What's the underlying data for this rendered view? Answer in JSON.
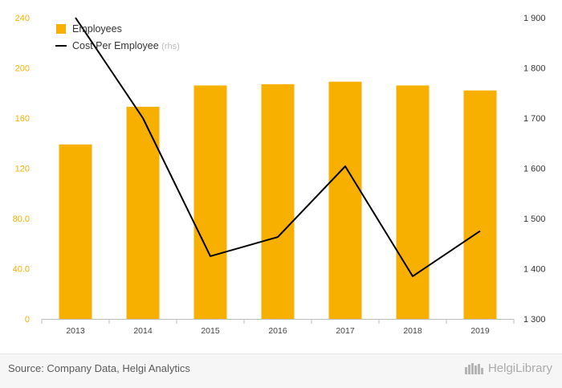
{
  "chart_data": {
    "type": "bar+line",
    "categories": [
      "2013",
      "2014",
      "2015",
      "2016",
      "2017",
      "2018",
      "2019"
    ],
    "series": [
      {
        "name": "Employees",
        "type": "bar",
        "axis": "left",
        "color": "#f7b000",
        "values": [
          139,
          169,
          186,
          187,
          189,
          186,
          182
        ]
      },
      {
        "name": "Cost Per Employee",
        "suffix": "(rhs)",
        "type": "line",
        "axis": "right",
        "color": "#000000",
        "values": [
          1900,
          1700,
          1425,
          1463,
          1604,
          1385,
          1475
        ]
      }
    ],
    "y_left": {
      "lim": [
        0,
        240
      ],
      "ticks": [
        {
          "v": 0,
          "label": "0"
        },
        {
          "v": 40,
          "label": "40.0"
        },
        {
          "v": 80,
          "label": "80.0"
        },
        {
          "v": 120,
          "label": "120"
        },
        {
          "v": 160,
          "label": "160"
        },
        {
          "v": 200,
          "label": "200"
        },
        {
          "v": 240,
          "label": "240"
        }
      ]
    },
    "y_right": {
      "lim": [
        1300,
        1900
      ],
      "ticks": [
        {
          "v": 1300,
          "label": "1 300"
        },
        {
          "v": 1400,
          "label": "1 400"
        },
        {
          "v": 1500,
          "label": "1 500"
        },
        {
          "v": 1600,
          "label": "1 600"
        },
        {
          "v": 1700,
          "label": "1 700"
        },
        {
          "v": 1800,
          "label": "1 800"
        },
        {
          "v": 1900,
          "label": "1 900"
        }
      ]
    },
    "grid": false,
    "legend_position": "top-left",
    "left_tick_color": "#f7b000",
    "right_tick_color": "#333333"
  },
  "footer": {
    "source": "Source: Company Data, Helgi Analytics",
    "logo_text": "HelgiLibrary"
  }
}
